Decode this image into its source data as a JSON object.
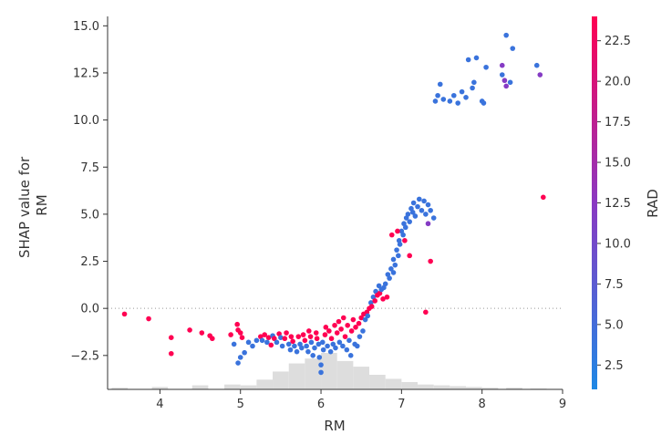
{
  "chart_data": {
    "type": "scatter",
    "title": "",
    "xlabel": "RM",
    "ylabel": [
      "SHAP value for",
      "RM"
    ],
    "colorbar_label": "RAD",
    "xlim": [
      3.35,
      9.0
    ],
    "ylim": [
      -4.3,
      15.5
    ],
    "x_ticks": [
      4,
      5,
      6,
      7,
      8,
      9
    ],
    "x_tick_labels": [
      "4",
      "5",
      "6",
      "7",
      "8",
      "9"
    ],
    "y_ticks": [
      -2.5,
      0.0,
      2.5,
      5.0,
      7.5,
      10.0,
      12.5,
      15.0
    ],
    "y_tick_labels": [
      "−2.5",
      "0.0",
      "2.5",
      "5.0",
      "7.5",
      "10.0",
      "12.5",
      "15.0"
    ],
    "colorbar_range": [
      1,
      24
    ],
    "colorbar_ticks": [
      2.5,
      5.0,
      7.5,
      10.0,
      12.5,
      15.0,
      17.5,
      20.0,
      22.5
    ],
    "colorbar_tick_labels": [
      "2.5",
      "5.0",
      "7.5",
      "10.0",
      "12.5",
      "15.0",
      "17.5",
      "20.0",
      "22.5"
    ],
    "colormap": [
      "#1E88E5",
      "#8A38C2",
      "#FF0052"
    ],
    "zero_line": true,
    "grid": false,
    "points": [
      [
        3.56,
        -0.3,
        24
      ],
      [
        3.86,
        -0.55,
        24
      ],
      [
        4.14,
        -1.55,
        24
      ],
      [
        4.14,
        -2.4,
        24
      ],
      [
        4.37,
        -1.15,
        24
      ],
      [
        4.52,
        -1.3,
        24
      ],
      [
        4.62,
        -1.45,
        24
      ],
      [
        4.65,
        -1.6,
        24
      ],
      [
        4.88,
        -1.4,
        24
      ],
      [
        4.96,
        -0.85,
        24
      ],
      [
        4.97,
        -1.15,
        24
      ],
      [
        5.0,
        -1.3,
        24
      ],
      [
        5.02,
        -1.55,
        24
      ],
      [
        4.92,
        -1.9,
        4
      ],
      [
        4.97,
        -2.9,
        4
      ],
      [
        5.0,
        -2.6,
        4
      ],
      [
        5.05,
        -2.35,
        4
      ],
      [
        5.1,
        -1.8,
        4
      ],
      [
        5.15,
        -2.0,
        4
      ],
      [
        5.2,
        -1.7,
        4
      ],
      [
        5.25,
        -1.5,
        24
      ],
      [
        5.27,
        -1.7,
        4
      ],
      [
        5.3,
        -1.4,
        24
      ],
      [
        5.33,
        -1.8,
        4
      ],
      [
        5.35,
        -1.55,
        24
      ],
      [
        5.38,
        -1.95,
        24
      ],
      [
        5.4,
        -1.45,
        4
      ],
      [
        5.42,
        -1.6,
        24
      ],
      [
        5.45,
        -1.8,
        4
      ],
      [
        5.48,
        -1.35,
        24
      ],
      [
        5.5,
        -1.55,
        4
      ],
      [
        5.52,
        -2.0,
        4
      ],
      [
        5.55,
        -1.6,
        24
      ],
      [
        5.57,
        -1.3,
        24
      ],
      [
        5.6,
        -1.9,
        4
      ],
      [
        5.62,
        -2.2,
        4
      ],
      [
        5.63,
        -1.5,
        24
      ],
      [
        5.65,
        -1.75,
        24
      ],
      [
        5.67,
        -2.0,
        4
      ],
      [
        5.7,
        -2.3,
        4
      ],
      [
        5.72,
        -1.5,
        24
      ],
      [
        5.74,
        -1.9,
        4
      ],
      [
        5.76,
        -2.1,
        4
      ],
      [
        5.78,
        -1.4,
        24
      ],
      [
        5.8,
        -1.7,
        24
      ],
      [
        5.82,
        -2.0,
        4
      ],
      [
        5.84,
        -2.3,
        4
      ],
      [
        5.85,
        -1.2,
        24
      ],
      [
        5.87,
        -1.5,
        24
      ],
      [
        5.88,
        -1.8,
        4
      ],
      [
        5.9,
        -2.5,
        4
      ],
      [
        5.92,
        -2.1,
        4
      ],
      [
        5.94,
        -1.3,
        24
      ],
      [
        5.95,
        -1.6,
        24
      ],
      [
        5.97,
        -1.9,
        4
      ],
      [
        5.98,
        -2.6,
        4
      ],
      [
        6.0,
        -3.0,
        4
      ],
      [
        6.0,
        -3.4,
        4
      ],
      [
        6.02,
        -1.8,
        4
      ],
      [
        6.03,
        -2.2,
        4
      ],
      [
        6.05,
        -1.4,
        24
      ],
      [
        6.06,
        -1.0,
        24
      ],
      [
        6.08,
        -2.0,
        4
      ],
      [
        6.1,
        -1.2,
        24
      ],
      [
        6.12,
        -2.3,
        4
      ],
      [
        6.13,
        -1.6,
        24
      ],
      [
        6.15,
        -1.9,
        4
      ],
      [
        6.17,
        -0.9,
        24
      ],
      [
        6.18,
        -2.1,
        4
      ],
      [
        6.2,
        -1.3,
        24
      ],
      [
        6.22,
        -0.7,
        24
      ],
      [
        6.23,
        -1.8,
        4
      ],
      [
        6.25,
        -1.1,
        24
      ],
      [
        6.27,
        -2.0,
        4
      ],
      [
        6.28,
        -0.5,
        24
      ],
      [
        6.3,
        -1.5,
        24
      ],
      [
        6.32,
        -2.2,
        4
      ],
      [
        6.33,
        -0.9,
        24
      ],
      [
        6.35,
        -1.7,
        4
      ],
      [
        6.37,
        -2.5,
        4
      ],
      [
        6.38,
        -1.2,
        24
      ],
      [
        6.4,
        -0.6,
        24
      ],
      [
        6.42,
        -1.9,
        4
      ],
      [
        6.43,
        -1.0,
        24
      ],
      [
        6.45,
        -2.0,
        4
      ],
      [
        6.47,
        -0.8,
        24
      ],
      [
        6.48,
        -1.5,
        4
      ],
      [
        6.5,
        -0.5,
        24
      ],
      [
        6.52,
        -1.2,
        4
      ],
      [
        6.53,
        -0.3,
        24
      ],
      [
        6.55,
        -0.6,
        4
      ],
      [
        6.57,
        -0.2,
        24
      ],
      [
        6.58,
        -0.4,
        4
      ],
      [
        6.6,
        0.0,
        24
      ],
      [
        6.62,
        0.3,
        4
      ],
      [
        6.63,
        0.1,
        24
      ],
      [
        6.65,
        0.6,
        4
      ],
      [
        6.67,
        0.4,
        24
      ],
      [
        6.68,
        0.9,
        4
      ],
      [
        6.7,
        0.7,
        24
      ],
      [
        6.72,
        1.2,
        4
      ],
      [
        6.73,
        0.8,
        24
      ],
      [
        6.75,
        1.0,
        4
      ],
      [
        6.77,
        0.5,
        24
      ],
      [
        6.78,
        1.1,
        4
      ],
      [
        6.8,
        1.3,
        4
      ],
      [
        6.82,
        0.6,
        24
      ],
      [
        6.83,
        1.8,
        4
      ],
      [
        6.85,
        1.6,
        4
      ],
      [
        6.87,
        2.1,
        4
      ],
      [
        6.9,
        1.9,
        4
      ],
      [
        6.9,
        2.6,
        4
      ],
      [
        6.92,
        2.3,
        4
      ],
      [
        6.94,
        3.1,
        4
      ],
      [
        6.96,
        2.8,
        4
      ],
      [
        6.97,
        3.6,
        4
      ],
      [
        6.98,
        3.4,
        4
      ],
      [
        7.0,
        4.1,
        4
      ],
      [
        7.02,
        3.9,
        4
      ],
      [
        7.03,
        4.5,
        4
      ],
      [
        7.05,
        4.3,
        4
      ],
      [
        7.06,
        4.8,
        4
      ],
      [
        7.08,
        5.0,
        4
      ],
      [
        7.1,
        4.6,
        4
      ],
      [
        7.12,
        5.3,
        4
      ],
      [
        7.14,
        5.1,
        4
      ],
      [
        7.15,
        5.6,
        4
      ],
      [
        7.17,
        4.9,
        4
      ],
      [
        7.2,
        5.4,
        4
      ],
      [
        7.22,
        5.8,
        4
      ],
      [
        7.25,
        5.2,
        4
      ],
      [
        7.28,
        5.7,
        4
      ],
      [
        7.3,
        5.0,
        4
      ],
      [
        7.33,
        5.5,
        4
      ],
      [
        7.36,
        5.2,
        4
      ],
      [
        7.4,
        4.8,
        4
      ],
      [
        7.04,
        3.6,
        24
      ],
      [
        7.1,
        2.8,
        24
      ],
      [
        7.3,
        -0.2,
        24
      ],
      [
        7.36,
        2.5,
        24
      ],
      [
        7.33,
        4.5,
        12
      ],
      [
        6.88,
        3.9,
        24
      ],
      [
        6.95,
        4.1,
        24
      ],
      [
        7.42,
        11.0,
        4
      ],
      [
        7.45,
        11.3,
        4
      ],
      [
        7.48,
        11.9,
        4
      ],
      [
        7.52,
        11.1,
        4
      ],
      [
        7.6,
        11.0,
        4
      ],
      [
        7.65,
        11.3,
        4
      ],
      [
        7.7,
        10.9,
        4
      ],
      [
        7.75,
        11.5,
        4
      ],
      [
        7.8,
        11.2,
        4
      ],
      [
        7.83,
        13.2,
        4
      ],
      [
        7.88,
        11.7,
        4
      ],
      [
        7.9,
        12.0,
        4
      ],
      [
        7.93,
        13.3,
        4
      ],
      [
        8.0,
        11.0,
        4
      ],
      [
        8.02,
        10.9,
        4
      ],
      [
        8.05,
        12.8,
        4
      ],
      [
        8.25,
        12.4,
        4
      ],
      [
        8.3,
        14.5,
        4
      ],
      [
        8.35,
        12.0,
        4
      ],
      [
        8.38,
        13.8,
        4
      ],
      [
        8.25,
        12.9,
        12
      ],
      [
        8.28,
        12.1,
        12
      ],
      [
        8.3,
        11.8,
        12
      ],
      [
        8.68,
        12.9,
        4
      ],
      [
        8.72,
        12.4,
        12
      ],
      [
        8.76,
        5.9,
        24
      ]
    ],
    "histogram": [
      [
        3.5,
        0.02
      ],
      [
        4.0,
        0.03
      ],
      [
        4.5,
        0.05
      ],
      [
        4.9,
        0.06
      ],
      [
        5.1,
        0.05
      ],
      [
        5.3,
        0.12
      ],
      [
        5.5,
        0.22
      ],
      [
        5.7,
        0.32
      ],
      [
        5.9,
        0.38
      ],
      [
        6.1,
        0.45
      ],
      [
        6.3,
        0.35
      ],
      [
        6.5,
        0.28
      ],
      [
        6.7,
        0.18
      ],
      [
        6.9,
        0.13
      ],
      [
        7.1,
        0.09
      ],
      [
        7.3,
        0.06
      ],
      [
        7.5,
        0.05
      ],
      [
        7.7,
        0.04
      ],
      [
        7.9,
        0.03
      ],
      [
        8.1,
        0.02
      ],
      [
        8.4,
        0.02
      ],
      [
        8.7,
        0.01
      ]
    ]
  }
}
